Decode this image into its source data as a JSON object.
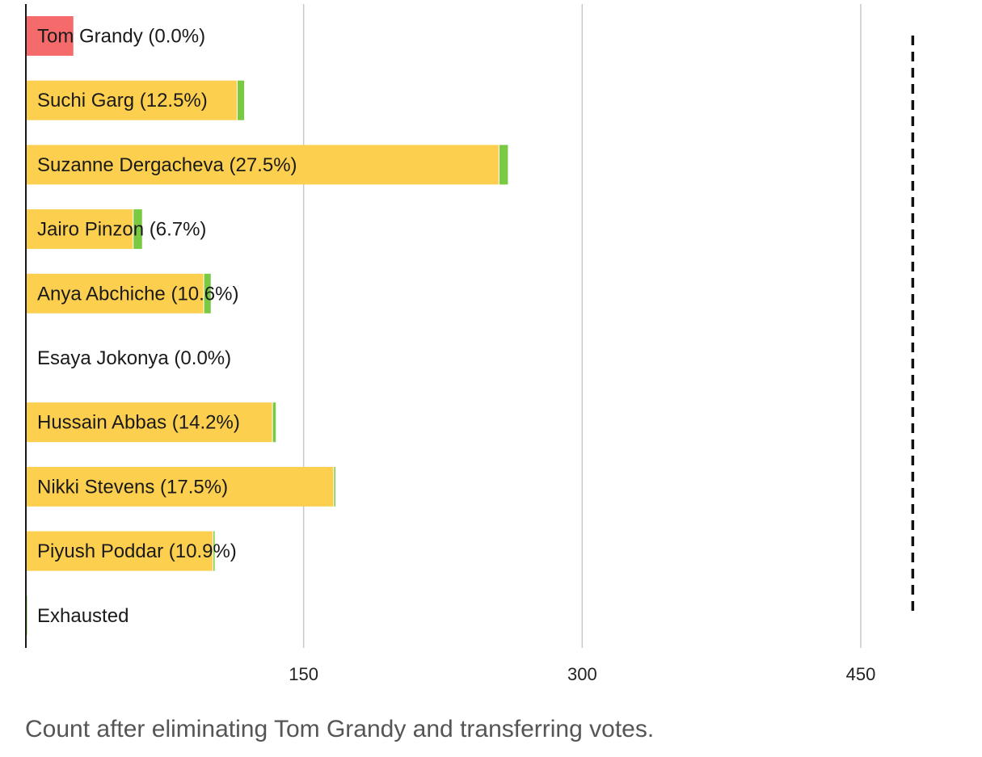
{
  "chart_data": {
    "type": "bar",
    "orientation": "horizontal",
    "stacked": true,
    "caption": "Count after eliminating Tom Grandy and transferring votes.",
    "xlim": [
      0,
      480
    ],
    "ticks": [
      "150",
      "300",
      "450"
    ],
    "tick_values": [
      150,
      300,
      450
    ],
    "grid": true,
    "threshold": 478,
    "categories": [
      "Tom Grandy (0.0%)",
      "Suchi Garg (12.5%)",
      "Suzanne Dergacheva (27.5%)",
      "Jairo Pinzon (6.7%)",
      "Anya Abchiche (10.6%)",
      "Esaya Jokonya (0.0%)",
      "Hussain Abbas (14.2%)",
      "Nikki Stevens (17.5%)",
      "Piyush Poddar (10.9%)",
      "Exhausted"
    ],
    "eliminated": [
      26,
      0,
      0,
      0,
      0,
      0,
      0,
      0,
      0,
      0
    ],
    "series": [
      {
        "name": "",
        "color": "#fccf4f",
        "values": [
          0,
          114,
          255,
          58,
          96,
          0,
          133,
          166,
          101,
          0
        ]
      },
      {
        "name": "",
        "color": "#7ac943",
        "values": [
          0,
          4,
          5,
          5,
          4,
          0,
          2,
          1,
          1,
          1
        ]
      }
    ],
    "eliminated_color": "#f56b6b",
    "grid_color": "#c8c8c8",
    "axis_color": "#1a1a1a"
  }
}
